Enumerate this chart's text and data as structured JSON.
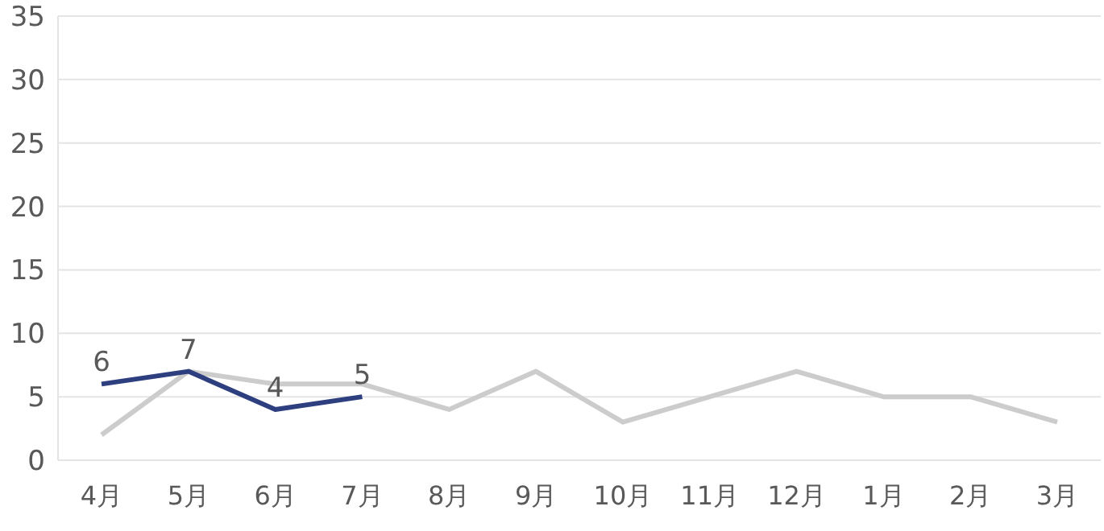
{
  "chart_data": {
    "type": "line",
    "categories": [
      "4月",
      "5月",
      "6月",
      "7月",
      "8月",
      "9月",
      "10月",
      "11月",
      "12月",
      "1月",
      "2月",
      "3月"
    ],
    "series": [
      {
        "color": "#cccccc",
        "values": [
          2,
          7,
          6,
          6,
          4,
          7,
          3,
          5,
          7,
          5,
          5,
          3
        ]
      },
      {
        "color": "#2e3f80",
        "values": [
          6,
          7,
          4,
          5,
          null,
          null,
          null,
          null,
          null,
          null,
          null,
          null
        ],
        "value_labels": [
          "6",
          "7",
          "4",
          "5",
          null,
          null,
          null,
          null,
          null,
          null,
          null,
          null
        ]
      }
    ],
    "ylim": [
      0,
      35
    ],
    "yticks": [
      0,
      5,
      10,
      15,
      20,
      25,
      30,
      35
    ],
    "grid": "y",
    "legend": false,
    "marker": "none",
    "line_style": "solid"
  }
}
